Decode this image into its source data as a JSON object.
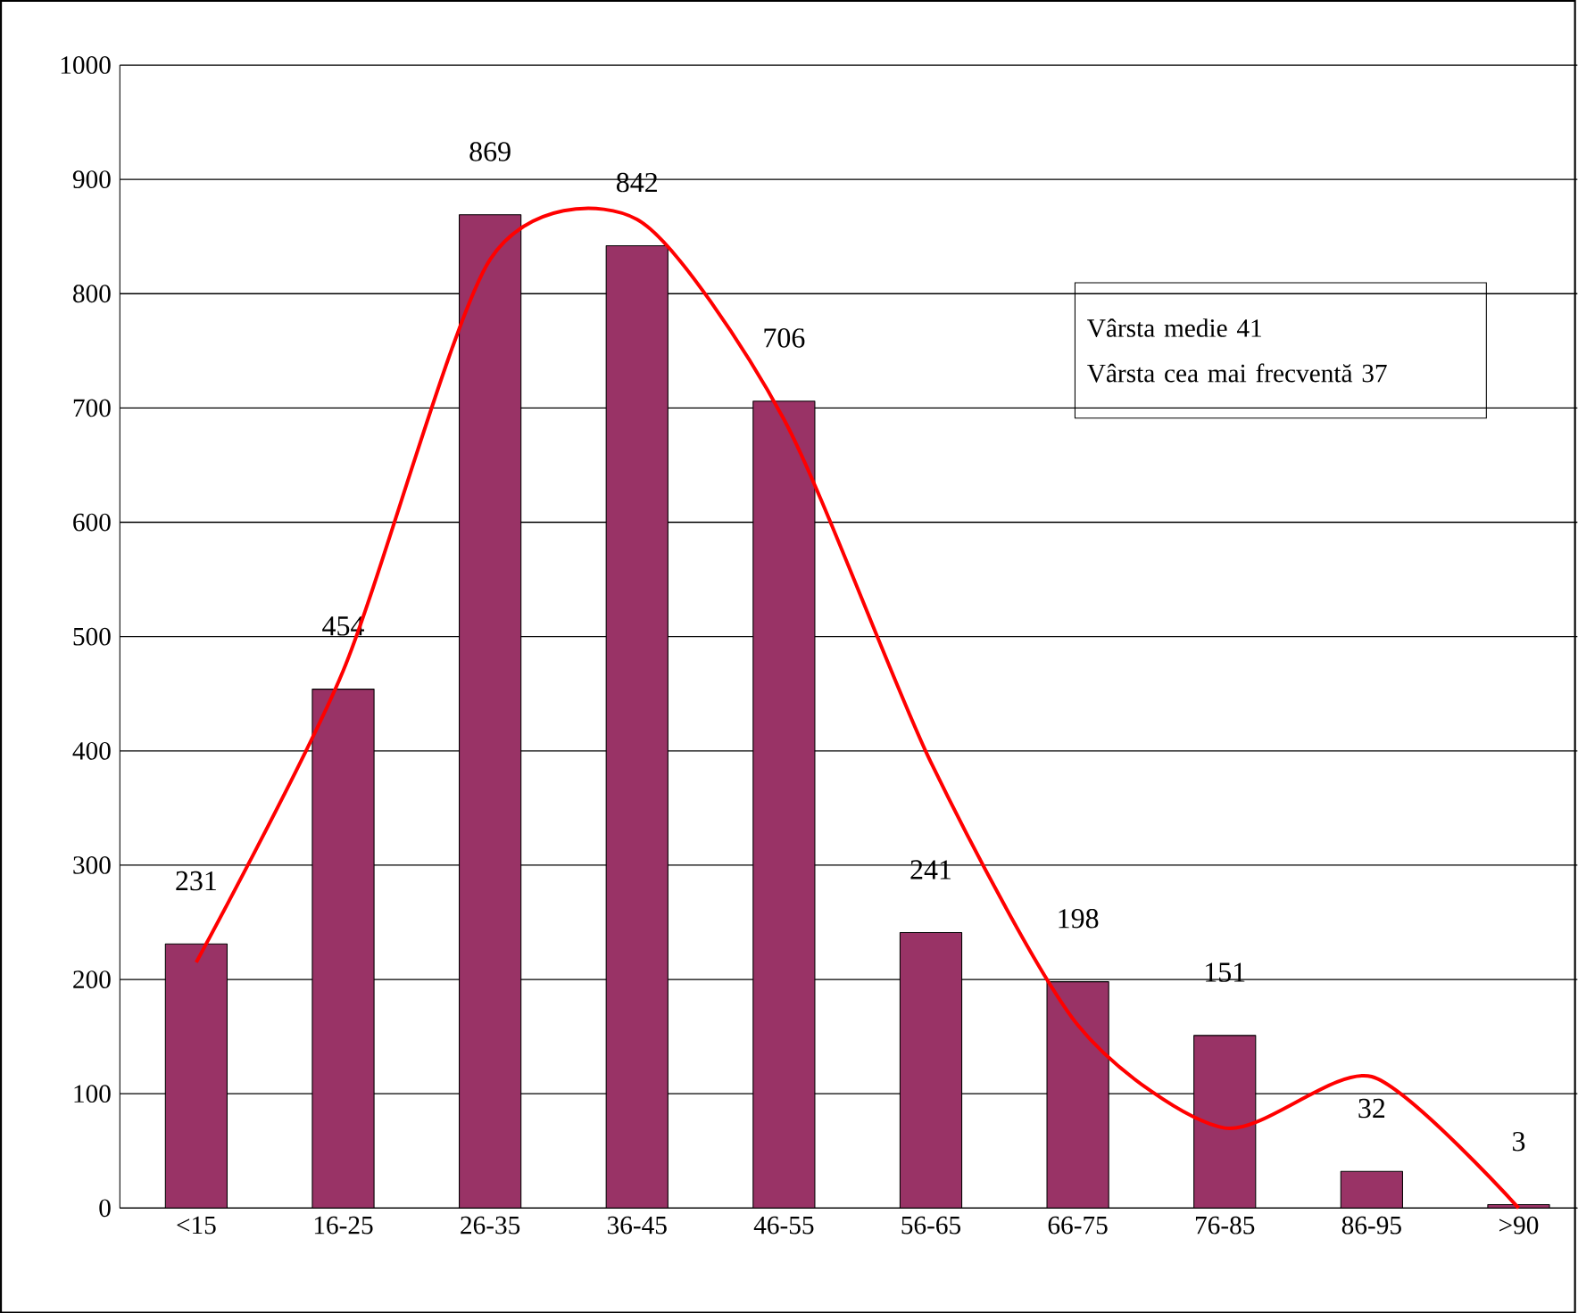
{
  "chart_data": {
    "type": "bar",
    "categories": [
      "<15",
      "16-25",
      "26-35",
      "36-45",
      "46-55",
      "56-65",
      "66-75",
      "76-85",
      "86-95",
      ">90"
    ],
    "series": [
      {
        "color": "#993366",
        "values": [
          231,
          454,
          869,
          842,
          706,
          241,
          198,
          151,
          32,
          3
        ],
        "value_labels": [
          "231",
          "454",
          "869",
          "842",
          "706",
          "241",
          "198",
          "151",
          "32",
          "3"
        ]
      },
      {
        "type": "line",
        "color": "#ff0000",
        "values": [
          215,
          470,
          830,
          865,
          690,
          390,
          160,
          70,
          115,
          0
        ]
      }
    ],
    "ylim": [
      0,
      1000
    ],
    "yticks": [
      0,
      100,
      200,
      300,
      400,
      500,
      600,
      700,
      800,
      900,
      1000
    ],
    "grid": "y",
    "annotations": [
      "Vârsta medie 41",
      "Vârsta cea mai frecventă 37"
    ]
  }
}
